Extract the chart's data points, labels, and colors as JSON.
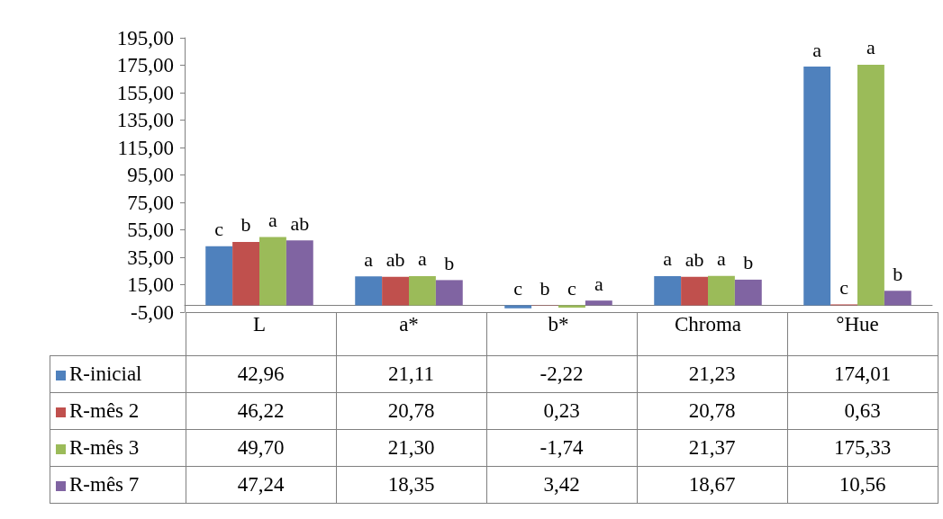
{
  "chart_data": {
    "type": "bar",
    "categories": [
      "L",
      "a*",
      "b*",
      "Chroma",
      "°Hue"
    ],
    "series": [
      {
        "name": "R-inicial",
        "color": "#4f81bd",
        "values": [
          42.96,
          21.11,
          -2.22,
          21.23,
          174.01
        ],
        "value_labels": [
          "42,96",
          "21,11",
          "-2,22",
          "21,23",
          "174,01"
        ]
      },
      {
        "name": "R-mês 2",
        "color": "#c0504d",
        "values": [
          46.22,
          20.78,
          0.23,
          20.78,
          0.63
        ],
        "value_labels": [
          "46,22",
          "20,78",
          "0,23",
          "20,78",
          "0,63"
        ]
      },
      {
        "name": "R-mês 3",
        "color": "#9bbb59",
        "values": [
          49.7,
          21.3,
          -1.74,
          21.37,
          175.33
        ],
        "value_labels": [
          "49,70",
          "21,30",
          "-1,74",
          "21,37",
          "175,33"
        ]
      },
      {
        "name": "R-mês 7",
        "color": "#8064a2",
        "values": [
          47.24,
          18.35,
          3.42,
          18.67,
          10.56
        ],
        "value_labels": [
          "47,24",
          "18,35",
          "3,42",
          "18,67",
          "10,56"
        ]
      }
    ],
    "ylim": [
      -5,
      195
    ],
    "yticks": [
      {
        "value": -5,
        "label": "-5,00"
      },
      {
        "value": 15,
        "label": "15,00"
      },
      {
        "value": 35,
        "label": "35,00"
      },
      {
        "value": 55,
        "label": "55,00"
      },
      {
        "value": 75,
        "label": "75,00"
      },
      {
        "value": 95,
        "label": "95,00"
      },
      {
        "value": 115,
        "label": "115,00"
      },
      {
        "value": 135,
        "label": "135,00"
      },
      {
        "value": 155,
        "label": "155,00"
      },
      {
        "value": 175,
        "label": "175,00"
      },
      {
        "value": 195,
        "label": "195,00"
      }
    ],
    "annotations": [
      {
        "text": "c",
        "x": "L",
        "y": 42.96
      },
      {
        "text": "b",
        "x": "L",
        "y": 46.22
      },
      {
        "text": "a",
        "x": "L",
        "y": 49.7
      },
      {
        "text": "ab",
        "x": "L",
        "y": 47.24
      },
      {
        "text": "a",
        "x": "a*",
        "y": 21.11
      },
      {
        "text": "ab",
        "x": "a*",
        "y": 20.78
      },
      {
        "text": "a",
        "x": "a*",
        "y": 21.3
      },
      {
        "text": "b",
        "x": "a*",
        "y": 18.35
      },
      {
        "text": "c",
        "x": "b*",
        "y": -2.22
      },
      {
        "text": "b",
        "x": "b*",
        "y": 0.23
      },
      {
        "text": "c",
        "x": "b*",
        "y": -1.74
      },
      {
        "text": "a",
        "x": "b*",
        "y": 3.42
      },
      {
        "text": "a",
        "x": "Chroma",
        "y": 21.23
      },
      {
        "text": "ab",
        "x": "Chroma",
        "y": 20.78
      },
      {
        "text": "a",
        "x": "Chroma",
        "y": 21.37
      },
      {
        "text": "b",
        "x": "Chroma",
        "y": 18.67
      },
      {
        "text": "a",
        "x": "°Hue",
        "y": 174.01
      },
      {
        "text": "c",
        "x": "°Hue",
        "y": 0.63
      },
      {
        "text": "a",
        "x": "°Hue",
        "y": 175.33
      },
      {
        "text": "b",
        "x": "°Hue",
        "y": 10.56
      }
    ],
    "legend": "bottom",
    "grid": false
  }
}
